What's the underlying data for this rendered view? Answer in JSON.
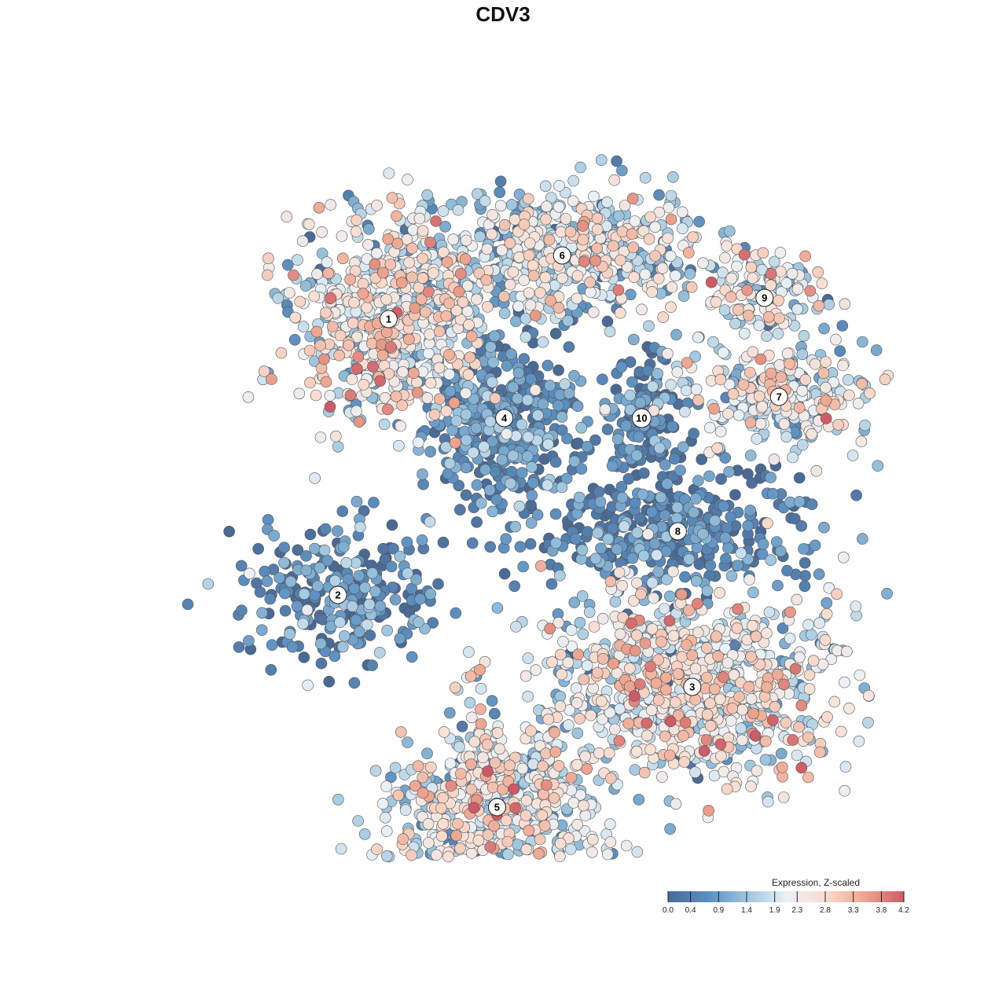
{
  "chart_data": {
    "type": "scatter",
    "title": "CDV3",
    "xlabel": "",
    "ylabel": "",
    "x_range": [
      0,
      100
    ],
    "y_range": [
      0,
      100
    ],
    "grid": false,
    "point_color_scale": {
      "name": "Expression, Z-scaled",
      "min": 0.0,
      "max": 4.2,
      "ticks": [
        0.0,
        0.4,
        0.9,
        1.4,
        1.9,
        2.3,
        2.8,
        3.3,
        3.8,
        4.2
      ],
      "tick_labels": [
        "0.0",
        "0.4",
        "0.9",
        "1.4",
        "1.9",
        "2.3",
        "2.8",
        "3.3",
        "3.8",
        "4.2"
      ],
      "colors": [
        "#4a6a96",
        "#5b8fc0",
        "#9cc5de",
        "#eaf1f6",
        "#f8ddd0",
        "#eea68f",
        "#cd5a66"
      ]
    },
    "legend_position": "bottom-right",
    "clusters": [
      {
        "label": "1",
        "x": 12,
        "y": 66,
        "sx": 9,
        "sy": 10,
        "n": 620,
        "mean_expr": 2.1,
        "spread": 0.8
      },
      {
        "label": "6",
        "x": 36,
        "y": 75,
        "sx": 14,
        "sy": 6,
        "n": 620,
        "mean_expr": 1.8,
        "spread": 0.8
      },
      {
        "label": "9",
        "x": 64,
        "y": 69,
        "sx": 6,
        "sy": 4,
        "n": 120,
        "mean_expr": 2.0,
        "spread": 0.7
      },
      {
        "label": "7",
        "x": 66,
        "y": 55,
        "sx": 10,
        "sy": 5,
        "n": 270,
        "mean_expr": 2.0,
        "spread": 0.8
      },
      {
        "label": "4",
        "x": 28,
        "y": 52,
        "sx": 7,
        "sy": 8,
        "n": 420,
        "mean_expr": 0.6,
        "spread": 0.55
      },
      {
        "label": "10",
        "x": 47,
        "y": 52,
        "sx": 4,
        "sy": 5,
        "n": 140,
        "mean_expr": 0.5,
        "spread": 0.5
      },
      {
        "label": "8",
        "x": 52,
        "y": 36,
        "sx": 13,
        "sy": 6,
        "n": 380,
        "mean_expr": 0.4,
        "spread": 0.5
      },
      {
        "label": "2",
        "x": 5,
        "y": 27,
        "sx": 9,
        "sy": 7,
        "n": 260,
        "mean_expr": 0.5,
        "spread": 0.6
      },
      {
        "label": "3",
        "x": 54,
        "y": 14,
        "sx": 14,
        "sy": 9,
        "n": 900,
        "mean_expr": 2.1,
        "spread": 0.8
      },
      {
        "label": "5",
        "x": 27,
        "y": -3,
        "sx": 10,
        "sy": 8,
        "n": 600,
        "mean_expr": 2.0,
        "spread": 0.8
      }
    ]
  }
}
